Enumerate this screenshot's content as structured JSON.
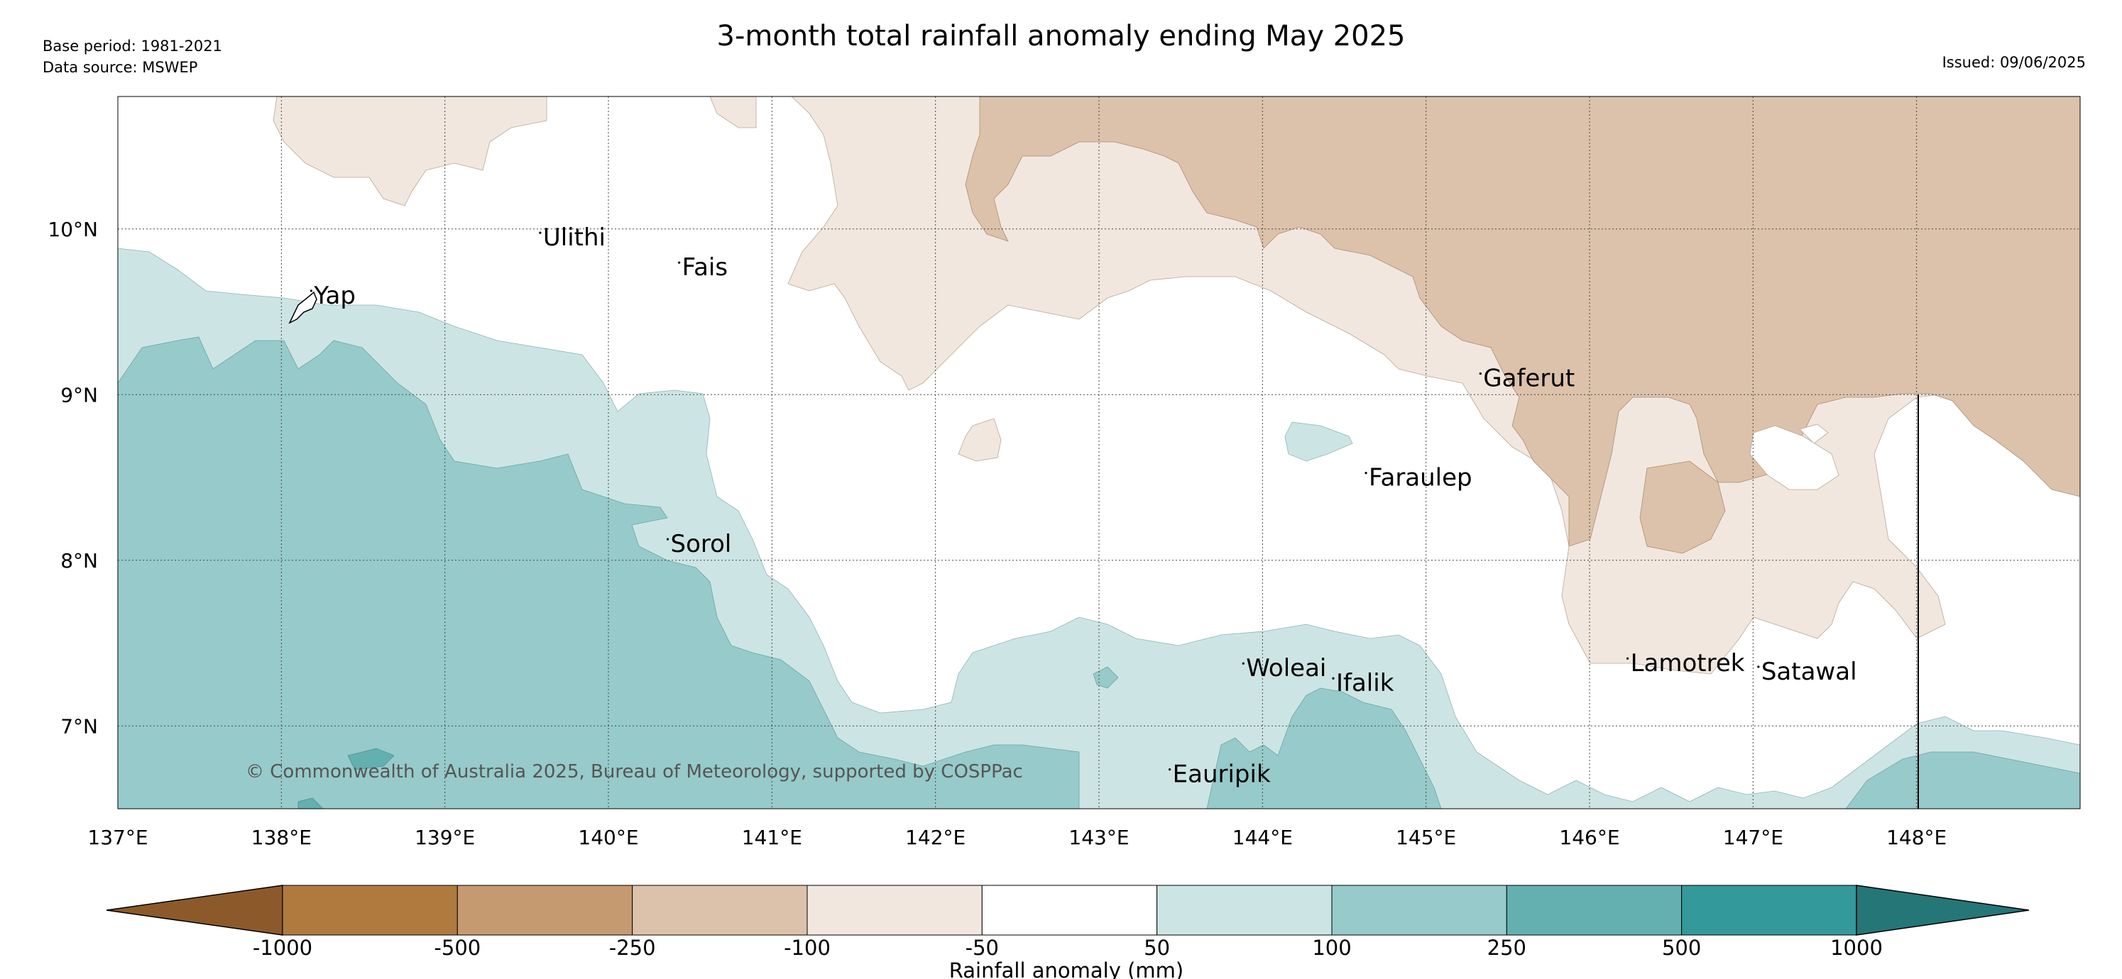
{
  "header": {
    "title": "3-month total rainfall anomaly ending May 2025",
    "base_period": "Base period: 1981-2021",
    "data_source": "Data source: MSWEP",
    "issued": "Issued: 09/06/2025"
  },
  "map": {
    "extent": {
      "lon": [
        137,
        149
      ],
      "lat": [
        6.5,
        10.8
      ]
    },
    "lat_labels": [
      {
        "lat": 10,
        "text": "10°N"
      },
      {
        "lat": 9,
        "text": "9°N"
      },
      {
        "lat": 8,
        "text": "8°N"
      },
      {
        "lat": 7,
        "text": "7°N"
      }
    ],
    "lon_labels": [
      {
        "lon": 137,
        "text": "137°E"
      },
      {
        "lon": 138,
        "text": "138°E"
      },
      {
        "lon": 139,
        "text": "139°E"
      },
      {
        "lon": 140,
        "text": "140°E"
      },
      {
        "lon": 141,
        "text": "141°E"
      },
      {
        "lon": 142,
        "text": "142°E"
      },
      {
        "lon": 143,
        "text": "143°E"
      },
      {
        "lon": 144,
        "text": "144°E"
      },
      {
        "lon": 145,
        "text": "145°E"
      },
      {
        "lon": 146,
        "text": "146°E"
      },
      {
        "lon": 147,
        "text": "147°E"
      },
      {
        "lon": 148,
        "text": "148°E"
      }
    ],
    "places": [
      {
        "name": "Yap",
        "lon": 138.2,
        "lat": 9.55
      },
      {
        "name": "Ulithi",
        "lon": 139.6,
        "lat": 9.9
      },
      {
        "name": "Fais",
        "lon": 140.45,
        "lat": 9.72
      },
      {
        "name": "Gaferut",
        "lon": 145.35,
        "lat": 9.05
      },
      {
        "name": "Faraulep",
        "lon": 144.65,
        "lat": 8.45
      },
      {
        "name": "Sorol",
        "lon": 140.38,
        "lat": 8.05
      },
      {
        "name": "Woleai",
        "lon": 143.9,
        "lat": 7.3
      },
      {
        "name": "Ifalik",
        "lon": 144.45,
        "lat": 7.21
      },
      {
        "name": "Lamotrek",
        "lon": 146.25,
        "lat": 7.33
      },
      {
        "name": "Satawal",
        "lon": 147.05,
        "lat": 7.28
      },
      {
        "name": "Eauripik",
        "lon": 143.45,
        "lat": 6.66
      }
    ],
    "copyright": "© Commonwealth of Australia 2025, Bureau of Meteorology, supported by COSPPac"
  },
  "legend": {
    "title": "Rainfall anomaly (mm)",
    "ticks": [
      "-1000",
      "-500",
      "-250",
      "-100",
      "-50",
      "50",
      "100",
      "250",
      "500",
      "1000"
    ],
    "colors": [
      "#8c5a2a",
      "#b07a3f",
      "#c69a70",
      "#dcc2aa",
      "#f1e7de",
      "#ffffff",
      "#cce5e4",
      "#97caca",
      "#64b0b0",
      "#33999a",
      "#257676"
    ]
  }
}
